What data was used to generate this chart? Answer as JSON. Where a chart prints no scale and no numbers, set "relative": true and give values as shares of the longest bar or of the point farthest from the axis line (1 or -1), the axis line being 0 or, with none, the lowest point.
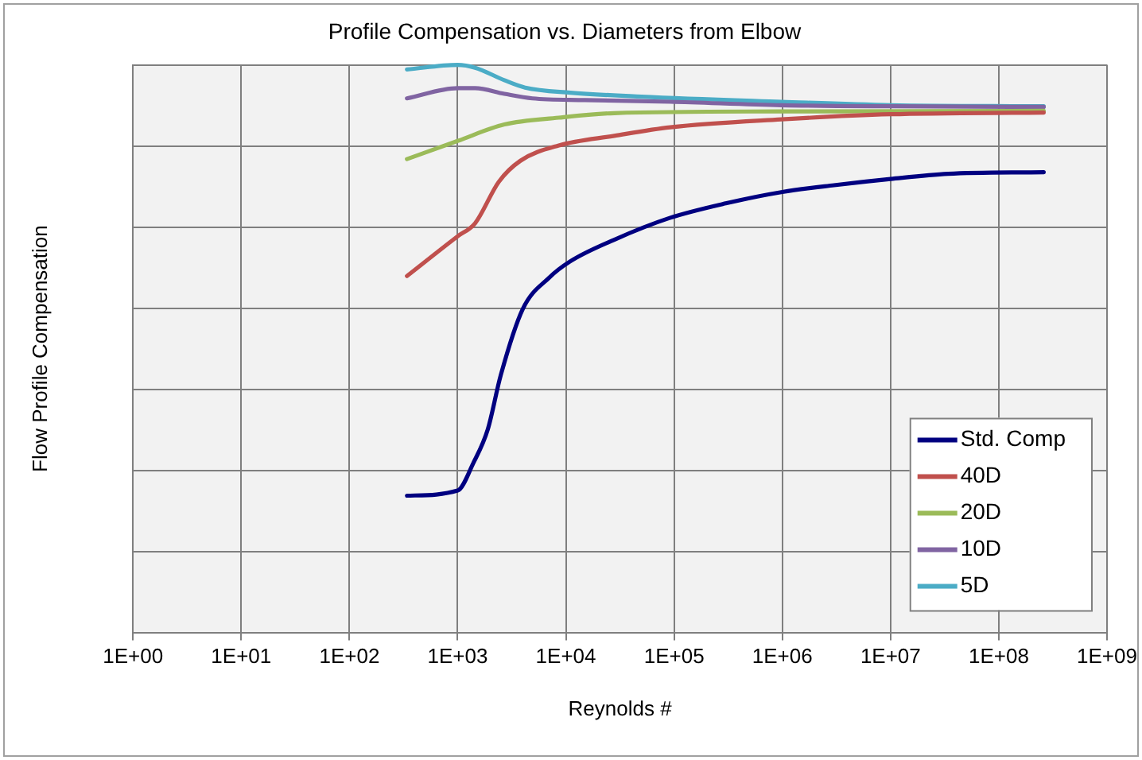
{
  "chart_data": {
    "type": "line",
    "title": "Profile Compensation vs. Diameters from Elbow",
    "xlabel": "Reynolds #",
    "ylabel": "Flow Profile Compensation",
    "relative": true,
    "log": "x",
    "grid": true,
    "legend": "bottom right",
    "xlim": [
      1,
      1000000000
    ],
    "xticks": [
      {
        "value": 1,
        "label": "1E+00"
      },
      {
        "value": 10,
        "label": "1E+01"
      },
      {
        "value": 100,
        "label": "1E+02"
      },
      {
        "value": 1000,
        "label": "1E+03"
      },
      {
        "value": 10000,
        "label": "1E+04"
      },
      {
        "value": 100000,
        "label": "1E+05"
      },
      {
        "value": 1000000,
        "label": "1E+06"
      },
      {
        "value": 10000000,
        "label": "1E+07"
      },
      {
        "value": 100000000,
        "label": "1E+08"
      },
      {
        "value": 1000000000,
        "label": "1E+09"
      }
    ],
    "series": [
      {
        "name": "Std. Comp",
        "color": "#000080",
        "x": [
          340,
          1000,
          1400,
          1900,
          2500,
          4000,
          7000,
          11000,
          28000,
          90000,
          300000,
          1000000,
          3000000,
          10000000,
          34000000,
          260000000
        ],
        "values": [
          0.241,
          0.25,
          0.299,
          0.358,
          0.453,
          0.57,
          0.625,
          0.654,
          0.692,
          0.73,
          0.756,
          0.776,
          0.788,
          0.799,
          0.808,
          0.811
        ]
      },
      {
        "name": "40D",
        "color": "#c0504d",
        "x": [
          340,
          1000,
          1450,
          2400,
          3800,
          8600,
          28000,
          92000,
          980000,
          10000000,
          260000000
        ],
        "values": [
          0.628,
          0.698,
          0.721,
          0.794,
          0.831,
          0.858,
          0.875,
          0.89,
          0.904,
          0.913,
          0.916
        ]
      },
      {
        "name": "20D",
        "color": "#9bbb59",
        "x": [
          340,
          1000,
          2700,
          8600,
          28000,
          980000,
          260000000
        ],
        "values": [
          0.834,
          0.866,
          0.895,
          0.907,
          0.915,
          0.918,
          0.919
        ]
      },
      {
        "name": "10D",
        "color": "#8064a2",
        "x": [
          340,
          1000,
          1450,
          2700,
          4900,
          15000,
          92000,
          980000,
          10000000,
          260000000
        ],
        "values": [
          0.941,
          0.959,
          0.959,
          0.949,
          0.941,
          0.938,
          0.935,
          0.929,
          0.927,
          0.926
        ]
      },
      {
        "name": "5D",
        "color": "#4bacc6",
        "x": [
          340,
          1000,
          1450,
          2700,
          4200,
          11000,
          50000,
          980000,
          10000000,
          260000000
        ],
        "values": [
          0.992,
          1.0,
          0.995,
          0.973,
          0.96,
          0.951,
          0.944,
          0.935,
          0.929,
          0.927
        ]
      }
    ]
  }
}
